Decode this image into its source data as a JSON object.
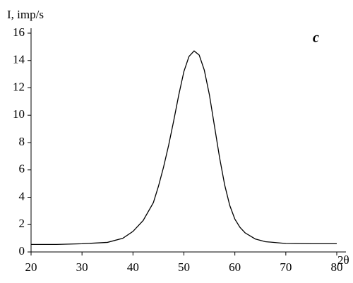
{
  "chart_data": {
    "type": "line",
    "ylabel": "I, imp/s",
    "xlabel": "2θ",
    "annotation": "c",
    "xlim": [
      20,
      80
    ],
    "ylim": [
      0,
      16
    ],
    "xticks": [
      20,
      30,
      40,
      50,
      60,
      70,
      80
    ],
    "yticks": [
      0,
      2,
      4,
      6,
      8,
      10,
      12,
      14,
      16
    ],
    "series": [
      {
        "color": "#000000",
        "x": [
          20,
          25,
          30,
          35,
          38,
          40,
          42,
          44,
          45,
          46,
          47,
          48,
          49,
          50,
          51,
          52,
          53,
          54,
          55,
          56,
          57,
          58,
          59,
          60,
          61,
          62,
          64,
          66,
          70,
          75,
          80
        ],
        "values": [
          0.55,
          0.55,
          0.6,
          0.7,
          1.0,
          1.5,
          2.3,
          3.6,
          4.8,
          6.2,
          7.8,
          9.6,
          11.5,
          13.2,
          14.3,
          14.7,
          14.4,
          13.3,
          11.5,
          9.2,
          6.9,
          4.9,
          3.4,
          2.4,
          1.8,
          1.4,
          0.95,
          0.75,
          0.62,
          0.6,
          0.6
        ]
      }
    ]
  }
}
